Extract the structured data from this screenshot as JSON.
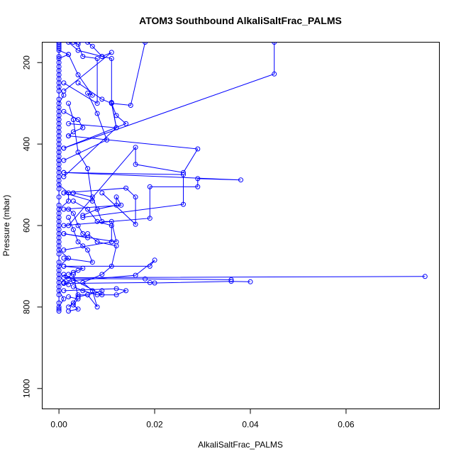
{
  "chart_data": {
    "type": "scatter",
    "title": "ATOM3 Southbound AlkaliSaltFrac_PALMS",
    "xlabel": "AlkaliSaltFrac_PALMS",
    "ylabel": "Pressure (mbar)",
    "xlim": [
      -0.0035,
      0.0795
    ],
    "ylim": [
      1050,
      150
    ],
    "y_reversed": true,
    "x_ticks": [
      0.0,
      0.02,
      0.04,
      0.06
    ],
    "x_tick_labels": [
      "0.00",
      "0.02",
      "0.04",
      "0.06"
    ],
    "y_ticks": [
      200,
      400,
      600,
      800,
      1000
    ],
    "y_tick_labels": [
      "200",
      "400",
      "600",
      "800",
      "1000"
    ],
    "grid": false,
    "legend": "none",
    "color": "#0000ff",
    "marker": "open-circle",
    "connected": true,
    "series": [
      {
        "x": [
          0,
          0,
          0.001,
          0,
          0,
          0,
          0,
          0.002,
          0,
          0,
          0,
          0,
          0,
          0,
          0.002,
          0.002,
          0,
          0,
          0,
          0
        ],
        "y": [
          810,
          800,
          780,
          760,
          740,
          720,
          700,
          680,
          660,
          640,
          620,
          600,
          580,
          560,
          540,
          520,
          500,
          480,
          460,
          440
        ]
      },
      {
        "x": [
          0,
          0,
          0,
          0,
          0,
          0,
          0,
          0,
          0.001,
          0,
          0,
          0,
          0,
          0,
          0.002,
          0,
          0,
          0,
          0,
          0
        ],
        "y": [
          440,
          420,
          400,
          380,
          360,
          340,
          320,
          300,
          280,
          260,
          240,
          220,
          200,
          190,
          180,
          170,
          160,
          155,
          150,
          150
        ]
      },
      {
        "x": [
          0,
          0,
          0,
          0,
          0,
          0,
          0,
          0,
          0,
          0,
          0,
          0,
          0,
          0,
          0,
          0,
          0
        ],
        "y": [
          805,
          790,
          770,
          750,
          730,
          710,
          690,
          670,
          650,
          630,
          610,
          590,
          570,
          550,
          530,
          510,
          490
        ]
      },
      {
        "x": [
          0,
          0,
          0,
          0,
          0,
          0,
          0,
          0,
          0,
          0,
          0,
          0,
          0,
          0,
          0,
          0
        ],
        "y": [
          470,
          450,
          430,
          410,
          390,
          370,
          350,
          330,
          310,
          290,
          270,
          250,
          230,
          210,
          185,
          165
        ]
      },
      {
        "x": [
          0.002,
          0.003,
          0.004,
          0.006,
          0.008,
          0.007,
          0.005,
          0.009,
          0.011,
          0.012,
          0.008,
          0.006
        ],
        "y": [
          800,
          790,
          770,
          770,
          800,
          760,
          740,
          720,
          700,
          650,
          640,
          620
        ]
      },
      {
        "x": [
          0.0765,
          0.001,
          0.002,
          0.018,
          0.036
        ],
        "y": [
          725,
          728,
          730,
          731,
          733
        ]
      },
      {
        "x": [
          0.04,
          0.036,
          0.02,
          0.019,
          0.001,
          0.002
        ],
        "y": [
          738,
          737,
          741,
          740,
          742,
          745
        ]
      },
      {
        "x": [
          0.045,
          0.045,
          0.001
        ],
        "y": [
          150,
          228,
          410
        ]
      },
      {
        "x": [
          0.001,
          0.019,
          0.02,
          0.016,
          0.003,
          0.001
        ],
        "y": [
          700,
          700,
          685,
          722,
          735,
          740
        ]
      },
      {
        "x": [
          0.001,
          0.038,
          0.029,
          0.029,
          0.019,
          0.019,
          0.001
        ],
        "y": [
          470,
          488,
          485,
          505,
          505,
          582,
          600
        ]
      },
      {
        "x": [
          0.001,
          0.026,
          0.026,
          0.005
        ],
        "y": [
          470,
          475,
          548,
          580
        ]
      },
      {
        "x": [
          0.002,
          0.029,
          0.026,
          0.016,
          0.016,
          0.002
        ],
        "y": [
          380,
          412,
          470,
          450,
          408,
          600
        ]
      },
      {
        "x": [
          0.001,
          0.014,
          0.016,
          0.016,
          0.009
        ],
        "y": [
          520,
          508,
          530,
          597,
          520
        ]
      },
      {
        "x": [
          0.001,
          0.013,
          0.012,
          0.012,
          0.008,
          0.005
        ],
        "y": [
          560,
          550,
          530,
          550,
          560,
          575
        ]
      },
      {
        "x": [
          0.001,
          0.012,
          0.011,
          0.009,
          0.007,
          0.003
        ],
        "y": [
          620,
          640,
          590,
          590,
          530,
          520
        ]
      },
      {
        "x": [
          0.001,
          0.012,
          0.011,
          0.015,
          0.018
        ],
        "y": [
          480,
          360,
          300,
          305,
          150
        ]
      },
      {
        "x": [
          0.002,
          0.012,
          0.011,
          0.011,
          0.009,
          0.004,
          0.002
        ],
        "y": [
          350,
          360,
          298,
          190,
          185,
          170,
          150
        ]
      },
      {
        "x": [
          0.001,
          0.01,
          0.008,
          0.006,
          0.007,
          0.004,
          0.002
        ],
        "y": [
          440,
          390,
          325,
          275,
          280,
          230,
          180
        ]
      },
      {
        "x": [
          0.001,
          0.008,
          0.008,
          0.005,
          0.004,
          0.003
        ],
        "y": [
          250,
          300,
          190,
          185,
          155,
          150
        ]
      },
      {
        "x": [
          0.001,
          0.007,
          0.006,
          0.004,
          0.003,
          0.002
        ],
        "y": [
          520,
          540,
          460,
          420,
          340,
          300
        ]
      },
      {
        "x": [
          0.001,
          0.006,
          0.005,
          0.004,
          0.003,
          0.002
        ],
        "y": [
          620,
          630,
          620,
          600,
          570,
          560
        ]
      },
      {
        "x": [
          0.001,
          0.007,
          0.006,
          0.005,
          0.004,
          0.003,
          0.002
        ],
        "y": [
          680,
          690,
          660,
          650,
          640,
          610,
          580
        ]
      },
      {
        "x": [
          0.001,
          0.009,
          0.009,
          0.006,
          0.004,
          0.003
        ],
        "y": [
          720,
          770,
          760,
          770,
          775,
          720
        ]
      },
      {
        "x": [
          0.001,
          0.012,
          0.014,
          0.012,
          0.008,
          0.005,
          0.003
        ],
        "y": [
          760,
          755,
          760,
          770,
          770,
          760,
          750
        ]
      },
      {
        "x": [
          0.001,
          0.011,
          0.009,
          0.007,
          0.006,
          0.004
        ],
        "y": [
          270,
          175,
          185,
          160,
          150,
          150
        ]
      },
      {
        "x": [
          0.001,
          0.005,
          0.004,
          0.003,
          0.002
        ],
        "y": [
          700,
          705,
          710,
          715,
          720
        ]
      },
      {
        "x": [
          0.002,
          0.004,
          0.003,
          0.004,
          0.002
        ],
        "y": [
          810,
          805,
          795,
          780,
          775
        ]
      },
      {
        "x": [
          0.001,
          0.014,
          0.012,
          0.011,
          0.009,
          0.004
        ],
        "y": [
          410,
          350,
          330,
          300,
          290,
          250
        ]
      },
      {
        "x": [
          0.001,
          0.011,
          0.011,
          0.008,
          0.006,
          0.003
        ],
        "y": [
          660,
          640,
          600,
          590,
          560,
          540
        ]
      },
      {
        "x": [
          0.001,
          0.004,
          0.005,
          0.003,
          0.002
        ],
        "y": [
          320,
          340,
          360,
          370,
          380
        ]
      }
    ]
  }
}
